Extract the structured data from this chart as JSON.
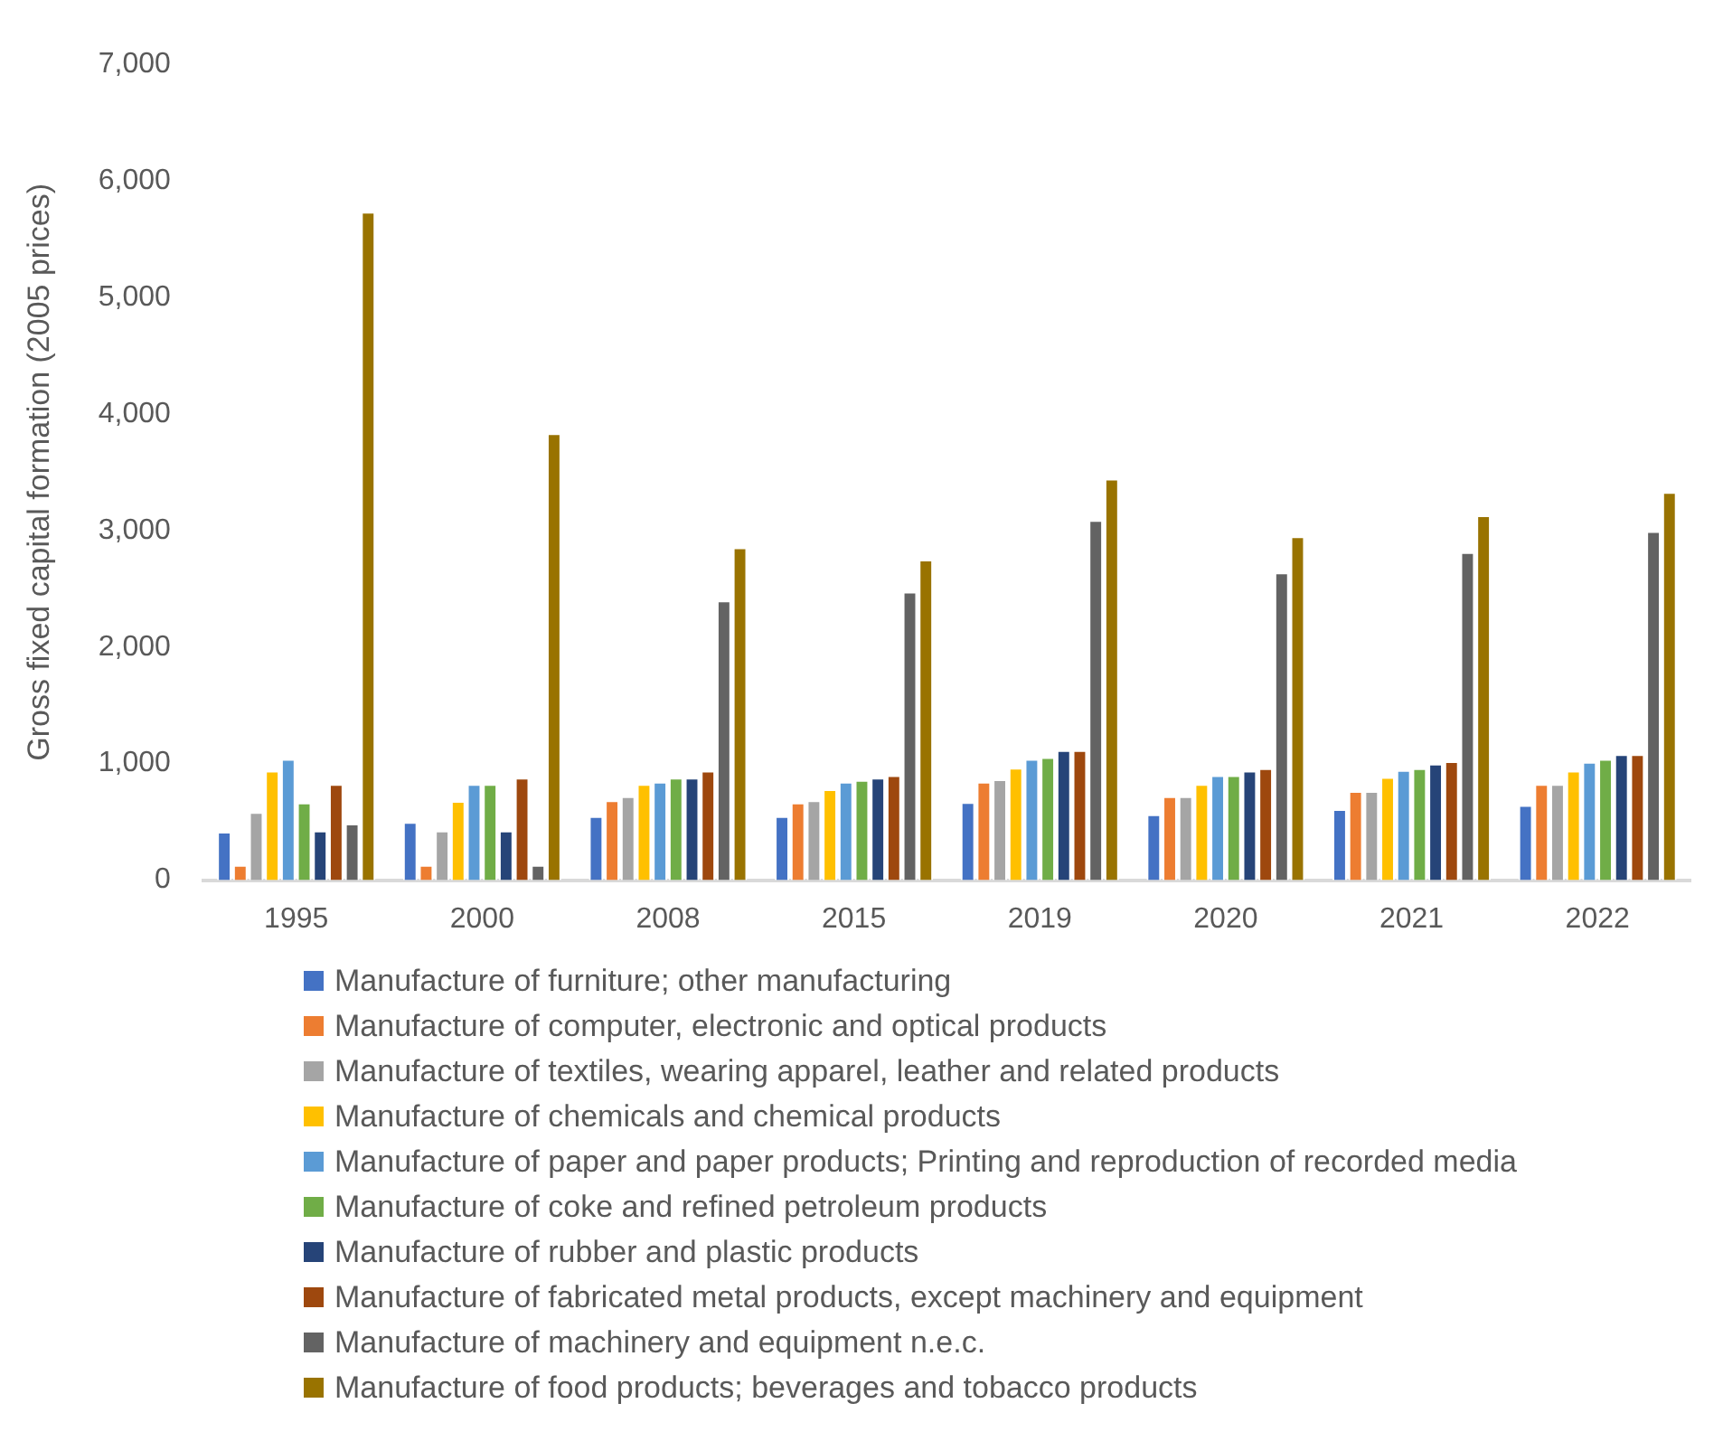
{
  "chart_data": {
    "type": "bar",
    "ylabel": "Gross fixed capital formation (2005 prices)",
    "categories": [
      "1995",
      "2000",
      "2008",
      "2015",
      "2019",
      "2020",
      "2021",
      "2022"
    ],
    "series": [
      {
        "name": "Manufacture of furniture; other manufacturing",
        "color": "#4472c4",
        "values": [
          415,
          500,
          550,
          550,
          670,
          565,
          610,
          645
        ]
      },
      {
        "name": "Manufacture of computer, electronic and optical products",
        "color": "#ed7d31",
        "values": [
          130,
          130,
          685,
          665,
          845,
          720,
          765,
          825
        ]
      },
      {
        "name": "Manufacture of textiles, wearing apparel, leather and related products",
        "color": "#a5a5a5",
        "values": [
          585,
          425,
          720,
          685,
          865,
          720,
          765,
          825
        ]
      },
      {
        "name": "Manufacture of chemicals and chemical products",
        "color": "#ffc000",
        "values": [
          940,
          680,
          825,
          780,
          965,
          825,
          885,
          940
        ]
      },
      {
        "name": "Manufacture of paper and paper products; Printing and reproduction of recorded media",
        "color": "#5b9bd5",
        "values": [
          1040,
          825,
          845,
          845,
          1040,
          900,
          945,
          1015
        ]
      },
      {
        "name": "Manufacture of coke and refined petroleum products",
        "color": "#70ad47",
        "values": [
          665,
          825,
          880,
          860,
          1055,
          900,
          960,
          1040
        ]
      },
      {
        "name": "Manufacture of rubber and plastic products",
        "color": "#264478",
        "values": [
          425,
          425,
          880,
          880,
          1115,
          940,
          1000,
          1080
        ]
      },
      {
        "name": "Manufacture of fabricated metal products, except machinery and equipment",
        "color": "#9e480e",
        "values": [
          825,
          880,
          940,
          900,
          1115,
          960,
          1020,
          1080
        ]
      },
      {
        "name": "Manufacture of machinery and equipment n.e.c.",
        "color": "#636363",
        "values": [
          485,
          130,
          2400,
          2475,
          3090,
          2640,
          2815,
          2995
        ]
      },
      {
        "name": "Manufacture of food products; beverages and tobacco products",
        "color": "#997300",
        "values": [
          5735,
          3835,
          2855,
          2750,
          3445,
          2950,
          3130,
          3330
        ]
      }
    ],
    "ylim": [
      0,
      7000
    ],
    "yticks": [
      {
        "value": 0,
        "label": "0"
      },
      {
        "value": 1000,
        "label": "1,000"
      },
      {
        "value": 2000,
        "label": "2,000"
      },
      {
        "value": 3000,
        "label": "3,000"
      },
      {
        "value": 4000,
        "label": "4,000"
      },
      {
        "value": 5000,
        "label": "5,000"
      },
      {
        "value": 6000,
        "label": "6,000"
      },
      {
        "value": 7000,
        "label": "7,000"
      }
    ],
    "grid": false,
    "legend": "bottom"
  }
}
